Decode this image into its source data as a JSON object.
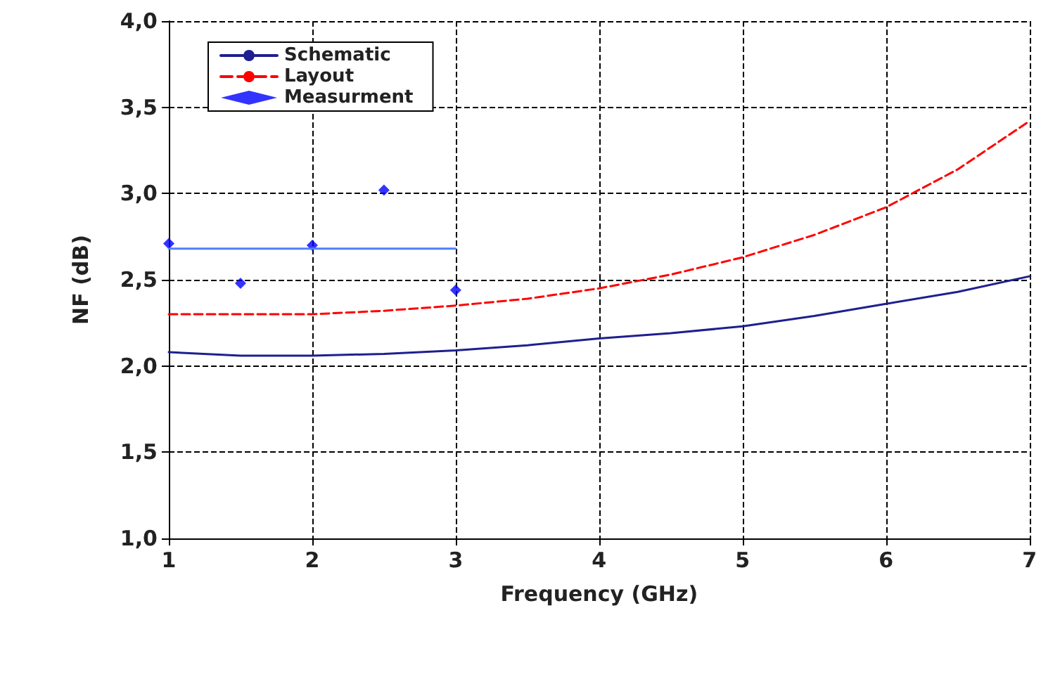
{
  "chart_data": {
    "type": "line",
    "xlabel": "Frequency (GHz)",
    "ylabel": "NF (dB)",
    "xlim": [
      1,
      7
    ],
    "xticks": [
      1,
      2,
      3,
      4,
      5,
      6,
      7
    ],
    "ylim": [
      1,
      4
    ],
    "yticks": [
      {
        "value": 1,
        "label": "1,0"
      },
      {
        "value": 1.5,
        "label": "1,5"
      },
      {
        "value": 2,
        "label": "2,0"
      },
      {
        "value": 2.5,
        "label": "2,5"
      },
      {
        "value": 3,
        "label": "3,0"
      },
      {
        "value": 3.5,
        "label": "3,5"
      },
      {
        "value": 4,
        "label": "4,0"
      }
    ],
    "grid": true,
    "legend": "top left",
    "series": [
      {
        "name": "Schematic",
        "color": "#1f1f8f",
        "marker": "none",
        "line_style": "solid",
        "x": [
          1,
          1.5,
          2,
          2.5,
          3,
          3.5,
          4,
          4.5,
          5,
          5.5,
          6,
          6.5,
          7
        ],
        "values": [
          2.08,
          2.06,
          2.06,
          2.07,
          2.09,
          2.12,
          2.16,
          2.19,
          2.23,
          2.29,
          2.36,
          2.43,
          2.52
        ]
      },
      {
        "name": "Layout",
        "color": "#ff0000",
        "marker": "none",
        "line_style": "dashed",
        "x": [
          1,
          1.5,
          2,
          2.5,
          3,
          3.5,
          4,
          4.5,
          5,
          5.5,
          6,
          6.5,
          7
        ],
        "values": [
          2.3,
          2.3,
          2.3,
          2.32,
          2.35,
          2.39,
          2.45,
          2.53,
          2.63,
          2.76,
          2.92,
          3.14,
          3.42
        ]
      },
      {
        "name": "Measurment",
        "type": "scatter",
        "color": "#0000ff",
        "marker": "diamond",
        "x": [
          1,
          1.5,
          2,
          2.5,
          3
        ],
        "values": [
          2.71,
          2.48,
          2.7,
          3.02,
          2.44
        ]
      },
      {
        "color": "#4f7fff",
        "marker": "none",
        "line_style": "solid",
        "x": [
          1,
          3
        ],
        "values": [
          2.68,
          2.68
        ]
      }
    ]
  }
}
